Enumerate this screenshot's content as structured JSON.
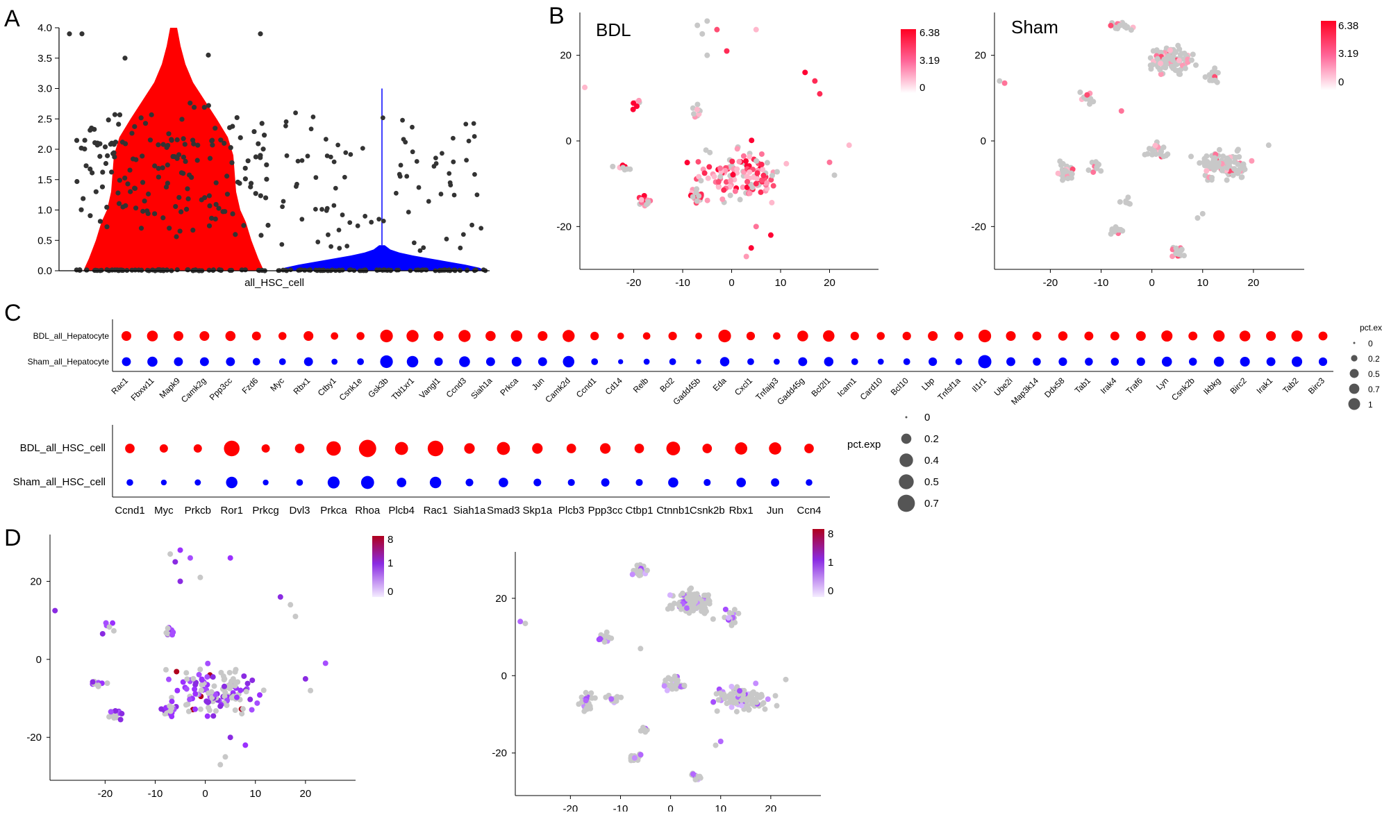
{
  "panel_letters": [
    "A",
    "B",
    "C",
    "D"
  ],
  "colors": {
    "bdl": "#ff0000",
    "sham": "#0000ff",
    "gray_cell": "#c8c8c8",
    "scale_b_high": "#ff0022",
    "scale_b_low": "#ffffff",
    "scale_d_high": "#b0001c",
    "scale_d_mid": "#8a2be2",
    "scale_d_low": "#ffffff"
  },
  "chart_data": [
    {
      "id": "A",
      "type": "violin",
      "xlabel": "all_HSC_cell",
      "ylim": [
        0,
        4.0
      ],
      "yticks": [
        0.0,
        0.5,
        1.0,
        1.5,
        2.0,
        2.5,
        3.0,
        3.5,
        4.0
      ],
      "ytick_labels": [
        "0.0",
        "0.5",
        "1.0",
        "1.5",
        "2.0",
        "2.5",
        "3.0",
        "3.5",
        "4.0"
      ],
      "groups": [
        {
          "color": "#ff0000",
          "max": 4.0
        },
        {
          "color": "#0000ff",
          "max": 3.0
        }
      ]
    },
    {
      "id": "B-left",
      "type": "scatter",
      "title": "BDL",
      "xticks": [
        -20,
        -10,
        0,
        10,
        20
      ],
      "yticks": [
        20,
        0,
        -20
      ],
      "xlim": [
        -31,
        30
      ],
      "ylim": [
        -30,
        30
      ],
      "colorbar": {
        "labels": [
          "6.38",
          "3.19",
          "0"
        ],
        "high": "#ff0022",
        "low": "#ffffff"
      }
    },
    {
      "id": "B-right",
      "type": "scatter",
      "title": "Sham",
      "xticks": [
        -20,
        -10,
        0,
        10,
        20
      ],
      "yticks": [
        20,
        0,
        -20
      ],
      "xlim": [
        -31,
        30
      ],
      "ylim": [
        -30,
        30
      ],
      "colorbar": {
        "labels": [
          "6.38",
          "3.19",
          "0"
        ],
        "high": "#ff0022",
        "low": "#ffffff"
      }
    },
    {
      "id": "C-top",
      "type": "dotplot",
      "rows": [
        "BDL_all_Hepatocyte",
        "Sham_all_Hepatocyte"
      ],
      "genes": [
        "Rac1",
        "Fbxw11",
        "Mapk9",
        "Camk2g",
        "Ppp3cc",
        "Fzd6",
        "Myc",
        "Rbx1",
        "Ctby1",
        "Csnk1e",
        "Gsk3b",
        "Tbl1xr1",
        "Vangl1",
        "Ccnd3",
        "Siah1a",
        "Prkca",
        "Jun",
        "Camk2d",
        "Ccnd1",
        "Cd14",
        "Relb",
        "Bcl2",
        "Gadd45b",
        "Eda",
        "Cxcl1",
        "Tnfaip3",
        "Gadd45g",
        "Bcl2l1",
        "Icam1",
        "Card10",
        "Bcl10",
        "Lbp",
        "Tnfsf1a",
        "Il1r1",
        "Ube2i",
        "Map3k14",
        "Ddx58",
        "Tab1",
        "Irak4",
        "Traf6",
        "Lyn",
        "Csnk2b",
        "Ikbkg",
        "Birc2",
        "Irak1",
        "Tab2",
        "Birc3"
      ],
      "pct_bdl": [
        0.45,
        0.6,
        0.45,
        0.45,
        0.5,
        0.35,
        0.25,
        0.45,
        0.2,
        0.25,
        0.9,
        0.8,
        0.45,
        0.8,
        0.5,
        0.7,
        0.45,
        0.8,
        0.3,
        0.15,
        0.2,
        0.3,
        0.15,
        0.9,
        0.3,
        0.2,
        0.6,
        0.7,
        0.3,
        0.25,
        0.3,
        0.45,
        0.35,
        0.9,
        0.45,
        0.35,
        0.4,
        0.35,
        0.35,
        0.45,
        0.65,
        0.35,
        0.7,
        0.6,
        0.45,
        0.65,
        0.35
      ],
      "pct_sham": [
        0.35,
        0.5,
        0.35,
        0.35,
        0.35,
        0.2,
        0.15,
        0.35,
        0.1,
        0.15,
        0.9,
        0.7,
        0.3,
        0.6,
        0.35,
        0.45,
        0.35,
        0.7,
        0.15,
        0.05,
        0.1,
        0.15,
        0.05,
        0.4,
        0.15,
        0.1,
        0.35,
        0.4,
        0.15,
        0.1,
        0.15,
        0.3,
        0.15,
        1.0,
        0.35,
        0.25,
        0.3,
        0.25,
        0.25,
        0.3,
        0.5,
        0.25,
        0.5,
        0.45,
        0.35,
        0.55,
        0.3
      ],
      "legend_title": "pct.exp",
      "legend_labels": [
        "0",
        "0.2",
        "0.5",
        "0.7",
        "1"
      ],
      "legend_values": [
        0.0,
        0.2,
        0.5,
        0.7,
        1.0
      ]
    },
    {
      "id": "C-bottom",
      "type": "dotplot",
      "rows": [
        "BDL_all_HSC_cell",
        "Sham_all_HSC_cell"
      ],
      "genes": [
        "Ccnd1",
        "Myc",
        "Prkcb",
        "Ror1",
        "Prkcg",
        "Dvl3",
        "Prkca",
        "Rhoa",
        "Plcb4",
        "Rac1",
        "Siah1a",
        "Smad3",
        "Skp1a",
        "Plcb3",
        "Ppp3cc",
        "Ctbp1",
        "Ctnnb1",
        "Csnk2b",
        "Rbx1",
        "Jun",
        "Ccn4"
      ],
      "pct_bdl": [
        0.15,
        0.1,
        0.1,
        0.55,
        0.1,
        0.15,
        0.45,
        0.7,
        0.35,
        0.55,
        0.2,
        0.35,
        0.2,
        0.15,
        0.2,
        0.15,
        0.4,
        0.15,
        0.3,
        0.3,
        0.15
      ],
      "pct_sham": [
        0.05,
        0.03,
        0.04,
        0.25,
        0.03,
        0.05,
        0.28,
        0.35,
        0.15,
        0.25,
        0.08,
        0.15,
        0.08,
        0.06,
        0.1,
        0.06,
        0.18,
        0.06,
        0.15,
        0.1,
        0.05
      ],
      "legend_title": "pct.exp",
      "legend_labels": [
        "0",
        "0.2",
        "0.4",
        "0.5",
        "0.7"
      ],
      "legend_values": [
        0.0,
        0.2,
        0.4,
        0.5,
        0.7
      ]
    },
    {
      "id": "D-left",
      "type": "scatter",
      "xticks": [
        -20,
        -10,
        0,
        10,
        20
      ],
      "yticks": [
        20,
        0,
        -20
      ],
      "xlim": [
        -31,
        30
      ],
      "ylim": [
        -31,
        32
      ],
      "colorbar": {
        "labels": [
          "8",
          "1",
          "0"
        ],
        "high": "#b0001c",
        "mid": "#8a2be2",
        "low": "#ffffff"
      }
    },
    {
      "id": "D-right",
      "type": "scatter",
      "xticks": [
        -20,
        -10,
        0,
        10,
        20
      ],
      "yticks": [
        20,
        0,
        -20
      ],
      "xlim": [
        -31,
        30
      ],
      "ylim": [
        -31,
        32
      ],
      "colorbar": {
        "labels": [
          "8",
          "1",
          "0"
        ],
        "high": "#b0001c",
        "mid": "#8a2be2",
        "low": "#ffffff"
      }
    }
  ]
}
